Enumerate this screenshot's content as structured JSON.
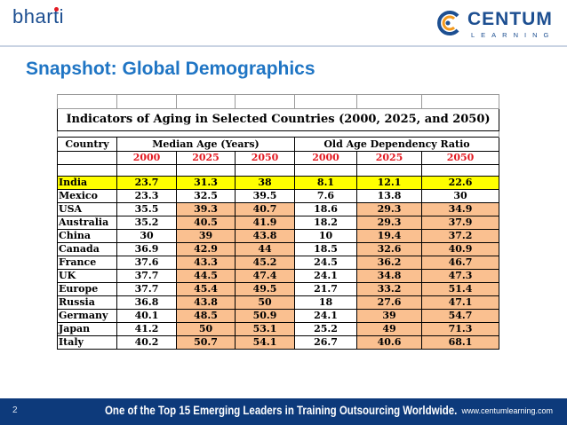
{
  "header": {
    "brand_left": "bharti",
    "brand_right": "CENTUM",
    "brand_right_sub": "LEARNING"
  },
  "slide": {
    "title": "Snapshot: Global Demographics"
  },
  "table": {
    "caption": "Indicators of Aging in Selected Countries (2000, 2025, and 2050)",
    "col_country": "Country",
    "group_median": "Median Age (Years)",
    "group_dependency": "Old Age Dependency Ratio",
    "years": [
      "2000",
      "2025",
      "2050",
      "2000",
      "2025",
      "2050"
    ],
    "rows": [
      {
        "country": "India",
        "median": [
          "23.7",
          "31.3",
          "38"
        ],
        "ratio": [
          "8.1",
          "12.1",
          "22.6"
        ]
      },
      {
        "country": "Mexico",
        "median": [
          "23.3",
          "32.5",
          "39.5"
        ],
        "ratio": [
          "7.6",
          "13.8",
          "30"
        ]
      },
      {
        "country": "USA",
        "median": [
          "35.5",
          "39.3",
          "40.7"
        ],
        "ratio": [
          "18.6",
          "29.3",
          "34.9"
        ]
      },
      {
        "country": "Australia",
        "median": [
          "35.2",
          "40.5",
          "41.9"
        ],
        "ratio": [
          "18.2",
          "29.3",
          "37.9"
        ]
      },
      {
        "country": "China",
        "median": [
          "30",
          "39",
          "43.8"
        ],
        "ratio": [
          "10",
          "19.4",
          "37.2"
        ]
      },
      {
        "country": "Canada",
        "median": [
          "36.9",
          "42.9",
          "44"
        ],
        "ratio": [
          "18.5",
          "32.6",
          "40.9"
        ]
      },
      {
        "country": "France",
        "median": [
          "37.6",
          "43.3",
          "45.2"
        ],
        "ratio": [
          "24.5",
          "36.2",
          "46.7"
        ]
      },
      {
        "country": "UK",
        "median": [
          "37.7",
          "44.5",
          "47.4"
        ],
        "ratio": [
          "24.1",
          "34.8",
          "47.3"
        ]
      },
      {
        "country": "Europe",
        "median": [
          "37.7",
          "45.4",
          "49.5"
        ],
        "ratio": [
          "21.7",
          "33.2",
          "51.4"
        ]
      },
      {
        "country": "Russia",
        "median": [
          "36.8",
          "43.8",
          "50"
        ],
        "ratio": [
          "18",
          "27.6",
          "47.1"
        ]
      },
      {
        "country": "Germany",
        "median": [
          "40.1",
          "48.5",
          "50.9"
        ],
        "ratio": [
          "24.1",
          "39",
          "54.7"
        ]
      },
      {
        "country": "Japan",
        "median": [
          "41.2",
          "50",
          "53.1"
        ],
        "ratio": [
          "25.2",
          "49",
          "71.3"
        ]
      },
      {
        "country": "Italy",
        "median": [
          "40.2",
          "50.7",
          "54.1"
        ],
        "ratio": [
          "26.7",
          "40.6",
          "68.1"
        ]
      }
    ]
  },
  "colors": {
    "highlight_row": "#ffff00",
    "highlight_cells": "#fac090",
    "year_text": "#e31b23",
    "title": "#1f75c4",
    "footer": "#0d3a7b"
  },
  "footer": {
    "page_number": "2",
    "slogan": "One of the Top 15 Emerging Leaders in Training Outsourcing Worldwide.",
    "url": "www.centumlearning.com"
  }
}
